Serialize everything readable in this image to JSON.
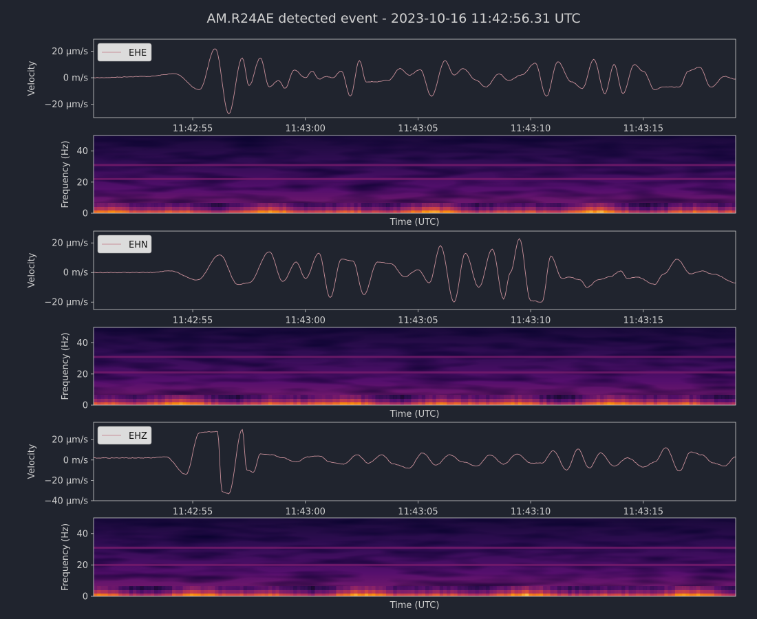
{
  "title": "AM.R24AE detected event - 2023-10-16 11:42:56.31 UTC",
  "colors": {
    "background": "#20242e",
    "foreground": "#d0d0d0",
    "trace": "#c9909a",
    "legend_bg": "#dcdcdc",
    "legend_text": "#111111",
    "spectrogram_colormap": "inferno"
  },
  "chart_data": [
    {
      "type": "line",
      "channel": "EHE",
      "legend": "EHE",
      "legend_position": "top-left",
      "ylabel": "Velocity",
      "yticks": [
        {
          "value": 20,
          "label": "20 μm/s"
        },
        {
          "value": 0,
          "label": "0 m/s"
        },
        {
          "value": -20,
          "label": "−20 μm/s"
        }
      ],
      "ylim": [
        -30,
        29
      ],
      "xlim": [
        -4.4,
        24.1
      ],
      "xticks": [
        {
          "value": 0,
          "label": "11:42:55"
        },
        {
          "value": 5,
          "label": "11:43:00"
        },
        {
          "value": 10,
          "label": "11:43:05"
        },
        {
          "value": 15,
          "label": "11:43:10"
        },
        {
          "value": 20,
          "label": "11:43:15"
        }
      ],
      "x": [
        -4.4,
        -2,
        -0.8,
        0.3,
        1.0,
        1.6,
        2.2,
        2.5,
        3.0,
        3.4,
        3.8,
        4.1,
        4.5,
        5.0,
        5.3,
        5.6,
        5.9,
        6.2,
        6.6,
        7.0,
        7.4,
        7.7,
        8.2,
        8.7,
        9.2,
        9.6,
        10.1,
        10.6,
        11.2,
        11.6,
        12.0,
        12.6,
        13.0,
        13.6,
        14.0,
        14.6,
        15.2,
        15.7,
        16.2,
        16.8,
        17.3,
        17.8,
        18.3,
        18.7,
        19.1,
        19.6,
        20.0,
        20.5,
        20.9,
        21.6,
        22.0,
        22.5,
        23.0,
        23.6,
        24.1
      ],
      "y": [
        0,
        1,
        3,
        -9,
        22,
        -27,
        15,
        -6,
        15,
        -7,
        -2,
        -8,
        6,
        0,
        5,
        -1,
        1,
        0,
        5,
        -14,
        13,
        -3,
        -3,
        -2,
        7,
        2,
        6,
        -14,
        13,
        2,
        7,
        -2,
        -7,
        3,
        -2,
        2,
        11,
        -14,
        12,
        -3,
        -8,
        14,
        -12,
        10,
        -12,
        10,
        5,
        -9,
        -7,
        -7,
        5,
        8,
        -7,
        1,
        -1
      ]
    },
    {
      "type": "heatmap",
      "channel": "EHE",
      "xlabel": "Time (UTC)",
      "ylabel": "Frequency (Hz)",
      "ylim": [
        0,
        50
      ],
      "yticks": [
        {
          "value": 0,
          "label": "0"
        },
        {
          "value": 20,
          "label": "20"
        },
        {
          "value": 40,
          "label": "40"
        }
      ],
      "bands_hz": [
        22,
        31
      ],
      "colormap": "inferno"
    },
    {
      "type": "line",
      "channel": "EHN",
      "legend": "EHN",
      "legend_position": "top-left",
      "ylabel": "Velocity",
      "yticks": [
        {
          "value": 20,
          "label": "20 μm/s"
        },
        {
          "value": 0,
          "label": "0 m/s"
        },
        {
          "value": -20,
          "label": "−20 μm/s"
        }
      ],
      "ylim": [
        -25,
        28
      ],
      "xlim": [
        -4.4,
        24.1
      ],
      "xticks": [
        {
          "value": 0,
          "label": "11:42:55"
        },
        {
          "value": 5,
          "label": "11:43:00"
        },
        {
          "value": 10,
          "label": "11:43:05"
        },
        {
          "value": 15,
          "label": "11:43:10"
        },
        {
          "value": 20,
          "label": "11:43:15"
        }
      ],
      "x": [
        -4.4,
        -2,
        -1,
        0.2,
        1.2,
        2.0,
        2.5,
        3.4,
        4.0,
        4.6,
        5.0,
        5.6,
        6.1,
        6.6,
        7.1,
        7.6,
        8.2,
        8.8,
        9.4,
        10.0,
        10.5,
        11.0,
        11.6,
        12.1,
        12.7,
        13.3,
        13.8,
        14.1,
        14.5,
        15.0,
        15.5,
        15.9,
        16.4,
        16.7,
        17.2,
        17.5,
        18.0,
        18.5,
        19.0,
        19.3,
        19.7,
        20.5,
        20.9,
        21.5,
        22.1,
        22.6,
        23.1,
        24.1
      ],
      "y": [
        0,
        0,
        1,
        -5,
        12,
        -8,
        -7,
        14,
        -6,
        7,
        -4,
        13,
        -17,
        9,
        8,
        -15,
        7,
        6,
        -3,
        2,
        -7,
        18,
        -20,
        13,
        -10,
        16,
        -18,
        0,
        23,
        -19,
        -20,
        11,
        -4,
        -3,
        -5,
        -10,
        -5,
        -3,
        1,
        -4,
        -3,
        -8,
        -1,
        9,
        -1,
        1,
        -1,
        -7
      ]
    },
    {
      "type": "heatmap",
      "channel": "EHN",
      "xlabel": "Time (UTC)",
      "ylabel": "Frequency (Hz)",
      "ylim": [
        0,
        50
      ],
      "yticks": [
        {
          "value": 0,
          "label": "0"
        },
        {
          "value": 20,
          "label": "20"
        },
        {
          "value": 40,
          "label": "40"
        }
      ],
      "bands_hz": [
        21,
        31
      ],
      "colormap": "inferno"
    },
    {
      "type": "line",
      "channel": "EHZ",
      "legend": "EHZ",
      "legend_position": "top-left",
      "ylabel": "Velocity",
      "yticks": [
        {
          "value": 20,
          "label": "20 μm/s"
        },
        {
          "value": 0,
          "label": "0 m/s"
        },
        {
          "value": -20,
          "label": "−20 μm/s"
        },
        {
          "value": -40,
          "label": "−40 μm/s"
        }
      ],
      "ylim": [
        -40,
        37
      ],
      "xlim": [
        -4.4,
        24.1
      ],
      "xticks": [
        {
          "value": 0,
          "label": "11:42:55"
        },
        {
          "value": 5,
          "label": "11:43:00"
        },
        {
          "value": 10,
          "label": "11:43:05"
        },
        {
          "value": 15,
          "label": "11:43:10"
        },
        {
          "value": 20,
          "label": "11:43:15"
        }
      ],
      "x": [
        -4.4,
        -2,
        -1.2,
        -0.3,
        0.3,
        1.1,
        1.3,
        1.6,
        2.2,
        2.4,
        2.7,
        3.0,
        3.5,
        4.0,
        4.6,
        5.1,
        5.6,
        6.1,
        6.7,
        7.3,
        7.8,
        8.4,
        8.9,
        9.6,
        10.2,
        10.8,
        11.4,
        12.0,
        12.6,
        13.2,
        13.8,
        14.4,
        15.0,
        15.5,
        16.0,
        16.6,
        17.1,
        17.6,
        18.1,
        18.7,
        19.3,
        20.0,
        20.5,
        21.0,
        21.6,
        22.1,
        22.6,
        23.1,
        23.6,
        24.1
      ],
      "y": [
        2,
        2,
        3,
        -14,
        27,
        28,
        -31,
        -33,
        30,
        -10,
        -12,
        6,
        5,
        2,
        -2,
        3,
        4,
        -2,
        -4,
        5,
        -3,
        5,
        -4,
        -8,
        7,
        -5,
        5,
        -2,
        -6,
        5,
        -4,
        6,
        -3,
        -3,
        9,
        -10,
        11,
        -8,
        7,
        -6,
        2,
        -7,
        -2,
        12,
        -11,
        8,
        5,
        -3,
        -6,
        3
      ]
    },
    {
      "type": "heatmap",
      "channel": "EHZ",
      "xlabel": "Time (UTC)",
      "ylabel": "Frequency (Hz)",
      "ylim": [
        0,
        50
      ],
      "yticks": [
        {
          "value": 0,
          "label": "0"
        },
        {
          "value": 20,
          "label": "20"
        },
        {
          "value": 40,
          "label": "40"
        }
      ],
      "bands_hz": [
        20,
        31
      ],
      "colormap": "inferno"
    }
  ]
}
